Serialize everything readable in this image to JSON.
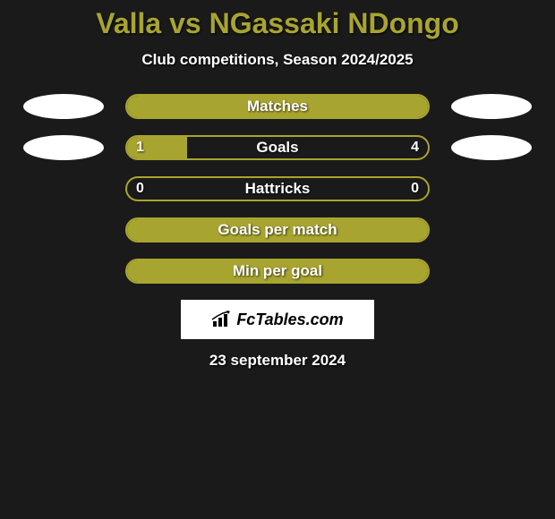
{
  "title": "Valla vs NGassaki NDongo",
  "subtitle": "Club competitions, Season 2024/2025",
  "date": "23 september 2024",
  "colors": {
    "accent": "#a8a430",
    "background": "#1a1a1a",
    "ellipse": "#ffffff",
    "text": "#ffffff",
    "title": "#a8a430"
  },
  "logo": {
    "text": "FcTables.com"
  },
  "stats": [
    {
      "label": "Matches",
      "left_val": "",
      "right_val": "",
      "fill_pct": 100,
      "border_color": "#a8a430",
      "fill_color": "#a8a430",
      "show_left_ellipse": true,
      "show_right_ellipse": true
    },
    {
      "label": "Goals",
      "left_val": "1",
      "right_val": "4",
      "fill_pct": 20,
      "border_color": "#a8a430",
      "fill_color": "#a8a430",
      "show_left_ellipse": true,
      "show_right_ellipse": true
    },
    {
      "label": "Hattricks",
      "left_val": "0",
      "right_val": "0",
      "fill_pct": 0,
      "border_color": "#a8a430",
      "fill_color": "#a8a430",
      "show_left_ellipse": false,
      "show_right_ellipse": false
    },
    {
      "label": "Goals per match",
      "left_val": "",
      "right_val": "",
      "fill_pct": 100,
      "border_color": "#a8a430",
      "fill_color": "#a8a430",
      "show_left_ellipse": false,
      "show_right_ellipse": false
    },
    {
      "label": "Min per goal",
      "left_val": "",
      "right_val": "",
      "fill_pct": 100,
      "border_color": "#a8a430",
      "fill_color": "#a8a430",
      "show_left_ellipse": false,
      "show_right_ellipse": false
    }
  ]
}
